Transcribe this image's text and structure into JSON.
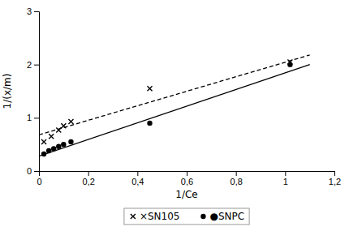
{
  "chart_data": {
    "type": "scatter",
    "x_label": "1/Ce",
    "y_label": "1/(x/m)",
    "xlim": [
      0,
      1.2
    ],
    "ylim": [
      0,
      3
    ],
    "xticks": [
      0,
      {
        "value": 0.2,
        "label": "0,2"
      },
      {
        "value": 0.4,
        "label": "0,4"
      },
      {
        "value": 0.6,
        "label": "0,6"
      },
      {
        "value": 0.8,
        "label": "0,8"
      },
      1,
      {
        "value": 1.2,
        "label": "1,2"
      }
    ],
    "yticks": [
      0,
      1,
      2,
      3
    ],
    "grid": false,
    "legend": "bottom",
    "series": [
      {
        "name": "×SN105",
        "type": "scatter",
        "marker": "x",
        "color": "#000000",
        "x": [
          0.02,
          0.05,
          0.08,
          0.1,
          0.13,
          0.45,
          1.02
        ],
        "values": [
          0.55,
          0.65,
          0.77,
          0.85,
          0.93,
          1.55,
          2.05
        ]
      },
      {
        "type": "line",
        "line_style": "dashed",
        "color": "#000000",
        "x": [
          0.0,
          1.1
        ],
        "values": [
          0.68,
          2.18
        ]
      },
      {
        "name": "●SNPC",
        "type": "scatter",
        "marker": "o",
        "color": "#000000",
        "x": [
          0.02,
          0.04,
          0.06,
          0.08,
          0.1,
          0.13,
          0.45,
          1.02
        ],
        "values": [
          0.32,
          0.38,
          0.42,
          0.46,
          0.5,
          0.55,
          0.9,
          2.0
        ]
      },
      {
        "type": "line",
        "line_style": "solid",
        "color": "#000000",
        "x": [
          0.0,
          1.1
        ],
        "values": [
          0.28,
          2.0
        ]
      }
    ]
  }
}
